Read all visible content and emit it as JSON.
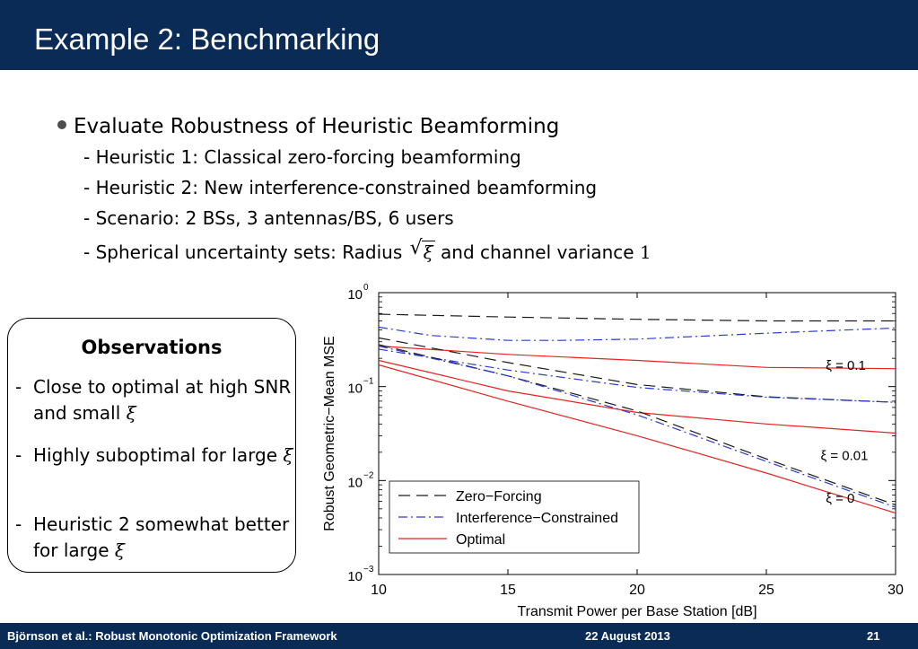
{
  "header": {
    "title": "Example 2: Benchmarking"
  },
  "bullets": {
    "main": "Evaluate Robustness of Heuristic Beamforming",
    "sub": [
      "- Heuristic 1: Classical zero-forcing beamforming",
      "- Heuristic 2: New interference-constrained beamforming",
      "- Scenario: 2 BSs, 3 antennas/BS, 6 users"
    ],
    "sub4_pre": "- Spherical uncertainty sets: Radius",
    "sub4_sym": "ξ",
    "sub4_mid": "and channel variance",
    "sub4_one": "1"
  },
  "observations": {
    "title": "Observations",
    "items": [
      {
        "text": "Close to optimal at high SNR and small",
        "sym": "ξ"
      },
      {
        "text": "Highly suboptimal for large",
        "sym": "ξ"
      },
      {
        "text": "Heuristic 2 somewhat better for large",
        "sym": "ξ"
      }
    ],
    "dash": "-"
  },
  "chart_data": {
    "type": "line",
    "xlabel": "Transmit Power per Base Station [dB]",
    "ylabel": "Robust Geometric−Mean MSE",
    "xlim": [
      10,
      30
    ],
    "ylim": [
      0.001,
      1
    ],
    "yscale": "log",
    "xticks": [
      "10",
      "15",
      "20",
      "25",
      "30"
    ],
    "yticks": [
      {
        "value": 1,
        "base": "10",
        "exp": "0"
      },
      {
        "value": 0.1,
        "base": "10",
        "exp": "−1"
      },
      {
        "value": 0.01,
        "base": "10",
        "exp": "−2"
      },
      {
        "value": 0.001,
        "base": "10",
        "exp": "−3"
      }
    ],
    "grid": false,
    "legend": {
      "placement": "bottom-left",
      "entries": [
        {
          "name": "Zero−Forcing",
          "style": "dashed",
          "color": "#1a1a1a"
        },
        {
          "name": "Interference−Constrained",
          "style": "dashdot",
          "color": "#2b3bd6"
        },
        {
          "name": "Optimal",
          "style": "solid",
          "color": "#e8231f"
        }
      ]
    },
    "annotations": [
      {
        "text": "ξ = 0.1",
        "x": 27.3,
        "y": 0.15
      },
      {
        "text": "ξ = 0.01",
        "x": 27.1,
        "y": 0.0166
      },
      {
        "text": "ξ = 0",
        "x": 27.3,
        "y": 0.0058
      }
    ],
    "series": [
      {
        "group": "Zero−Forcing",
        "xi": "0.1",
        "style": "dashed",
        "color": "#1a1a1a",
        "x": [
          10,
          15,
          20,
          25,
          30
        ],
        "y": [
          0.59,
          0.55,
          0.52,
          0.5,
          0.5
        ]
      },
      {
        "group": "Interference−Constrained",
        "xi": "0.1",
        "style": "dashdot",
        "color": "#2b3bd6",
        "x": [
          10,
          12,
          15,
          17,
          20,
          25,
          30
        ],
        "y": [
          0.43,
          0.35,
          0.31,
          0.31,
          0.32,
          0.37,
          0.42
        ]
      },
      {
        "group": "Optimal",
        "xi": "0.1",
        "style": "solid",
        "color": "#e8231f",
        "x": [
          10,
          15,
          20,
          25,
          30
        ],
        "y": [
          0.27,
          0.22,
          0.19,
          0.16,
          0.155
        ]
      },
      {
        "group": "Zero−Forcing",
        "xi": "0.01",
        "style": "dashed",
        "color": "#1a1a1a",
        "x": [
          10,
          15,
          20,
          25,
          30
        ],
        "y": [
          0.33,
          0.18,
          0.105,
          0.078,
          0.068
        ]
      },
      {
        "group": "Interference−Constrained",
        "xi": "0.01",
        "style": "dashdot",
        "color": "#2b3bd6",
        "x": [
          10,
          15,
          20,
          25,
          30
        ],
        "y": [
          0.25,
          0.15,
          0.098,
          0.077,
          0.068
        ]
      },
      {
        "group": "Optimal",
        "xi": "0.01",
        "style": "solid",
        "color": "#e8231f",
        "x": [
          10,
          15,
          20,
          25,
          30
        ],
        "y": [
          0.19,
          0.09,
          0.053,
          0.04,
          0.032
        ]
      },
      {
        "group": "Zero−Forcing",
        "xi": "0",
        "style": "dashed",
        "color": "#1a1a1a",
        "x": [
          10,
          15,
          20,
          25,
          30
        ],
        "y": [
          0.28,
          0.13,
          0.055,
          0.017,
          0.0055
        ]
      },
      {
        "group": "Interference−Constrained",
        "xi": "0",
        "style": "dashdot",
        "color": "#2b3bd6",
        "x": [
          10,
          15,
          20,
          25,
          30
        ],
        "y": [
          0.27,
          0.13,
          0.05,
          0.016,
          0.0052
        ]
      },
      {
        "group": "Optimal",
        "xi": "0",
        "style": "solid",
        "color": "#e8231f",
        "x": [
          10,
          15,
          20,
          25,
          30
        ],
        "y": [
          0.17,
          0.07,
          0.03,
          0.012,
          0.0045
        ]
      }
    ]
  },
  "footer": {
    "left": "Björnson et al.: Robust Monotonic Optimization Framework",
    "center": "22 August 2013",
    "page": "21"
  }
}
